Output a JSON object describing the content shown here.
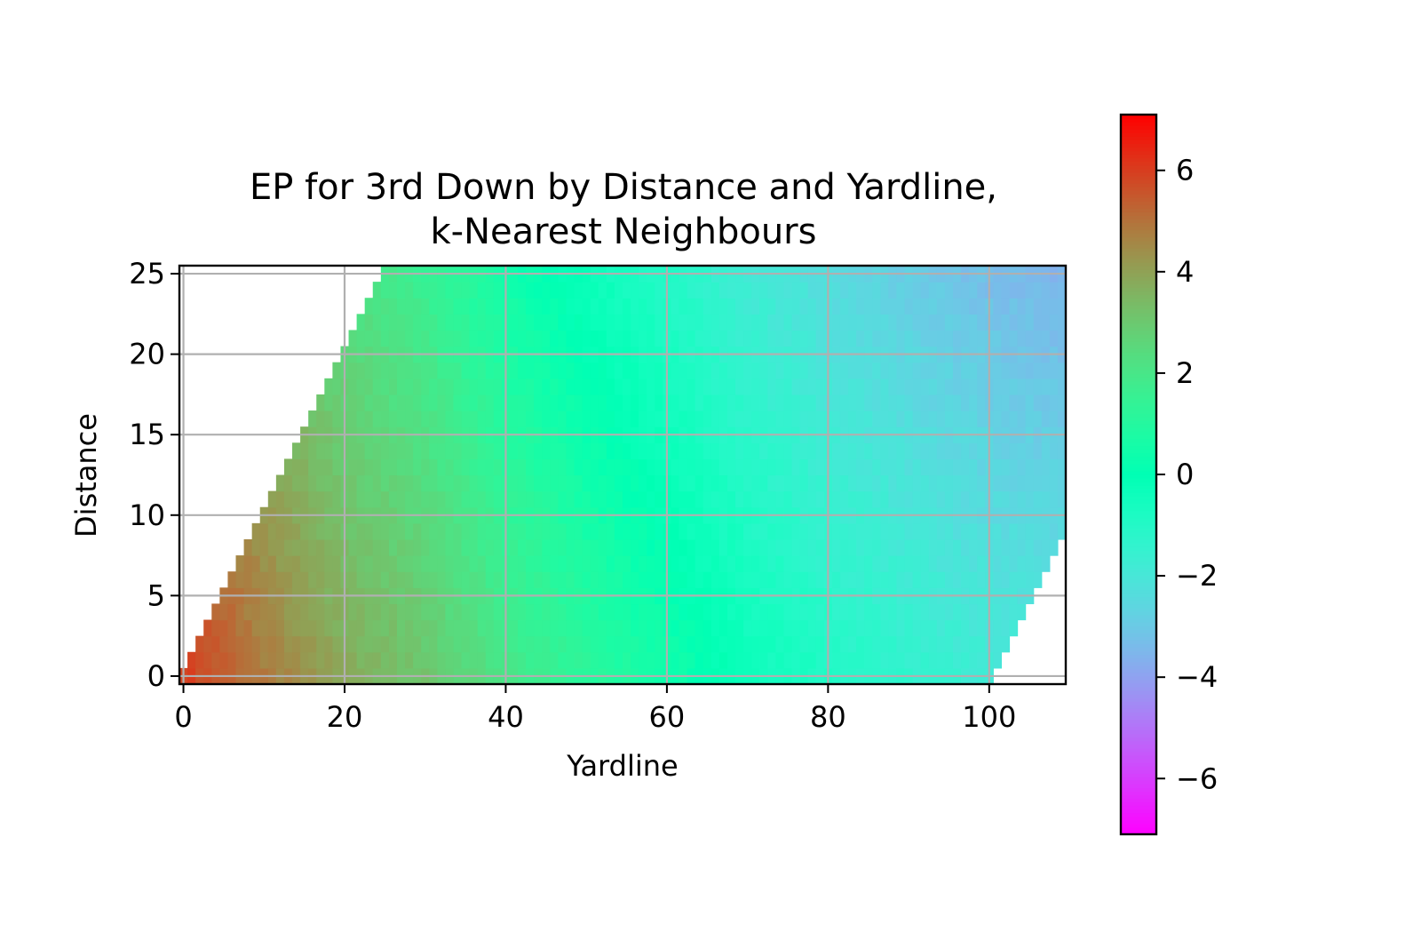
{
  "chart_data": {
    "type": "heatmap",
    "title": "EP for 3rd Down by Distance and Yardline,",
    "subtitle": "k-Nearest Neighbours",
    "xlabel": "Yardline",
    "ylabel": "Distance",
    "xlim": [
      -0.5,
      109.5
    ],
    "ylim": [
      -0.5,
      25.5
    ],
    "x_ticks": [
      "0",
      "20",
      "40",
      "60",
      "80",
      "100"
    ],
    "y_ticks": [
      "0",
      "5",
      "10",
      "15",
      "20",
      "25"
    ],
    "grid": true,
    "colormap": "rainbow",
    "color_range": [
      -7.1,
      7.1
    ],
    "colorbar_ticks": [
      "6",
      "4",
      "2",
      "0",
      "−2",
      "−4",
      "−6"
    ],
    "valid_region": "cells exist where distance <= yardline and yardline - distance <= 100",
    "grid_size": {
      "yardline_cells": 110,
      "distance_cells": 26
    },
    "ep_by_yardline_profile": [
      {
        "yardline": 0,
        "ep": 6.0
      },
      {
        "yardline": 10,
        "ep": 4.8
      },
      {
        "yardline": 20,
        "ep": 3.8
      },
      {
        "yardline": 30,
        "ep": 3.1
      },
      {
        "yardline": 40,
        "ep": 2.0
      },
      {
        "yardline": 50,
        "ep": 1.2
      },
      {
        "yardline": 60,
        "ep": 0.5
      },
      {
        "yardline": 70,
        "ep": -0.3
      },
      {
        "yardline": 80,
        "ep": -0.9
      },
      {
        "yardline": 90,
        "ep": -1.4
      },
      {
        "yardline": 100,
        "ep": -1.8
      },
      {
        "yardline": 109,
        "ep": -2.0
      }
    ],
    "distance_effect_per_yard": -0.06
  }
}
